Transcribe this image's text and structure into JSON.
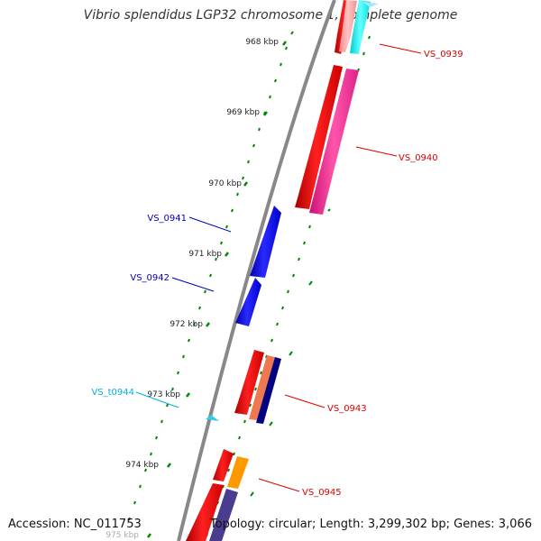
{
  "title": "Vibrio splendidus LGP32 chromosome 1, complete genome",
  "footer": {
    "accession": "Accession: NC_011753",
    "summary": "Topology: circular; Length: 3,299,302 bp; Genes: 3,066"
  },
  "scale": {
    "ticks": [
      "968 kbp",
      "969 kbp",
      "970 kbp",
      "971 kbp",
      "972 kbp",
      "973 kbp",
      "974 kbp",
      "975 kbp"
    ]
  },
  "genes": [
    {
      "label": "VS_0939",
      "color": "#dd0000"
    },
    {
      "label": "VS_0940",
      "color": "#dd0000"
    },
    {
      "label": "VS_0941",
      "color": "#0000bb"
    },
    {
      "label": "VS_0942",
      "color": "#0000bb"
    },
    {
      "label": "VS_t0944",
      "color": "#00b0e0"
    },
    {
      "label": "VS_0943",
      "color": "#dd0000"
    },
    {
      "label": "VS_0945",
      "color": "#dd0000"
    }
  ],
  "colors": {
    "cds": "#ff0000",
    "gene_blue": "#0000ff",
    "trna": "#33ccee",
    "magenta": "#ff3399",
    "cyan": "#00ffff",
    "salmon": "#f07850",
    "navy": "#000080",
    "orange": "#ff9900",
    "purple": "#4a3d8f",
    "backbone": "#888888",
    "tick_green": "#008800"
  }
}
